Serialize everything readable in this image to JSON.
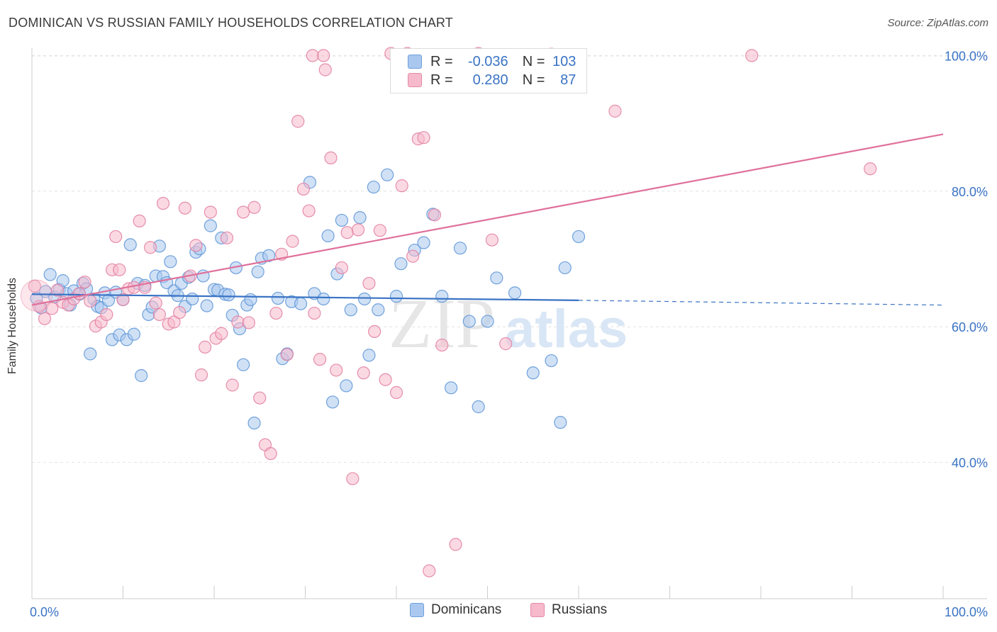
{
  "header": {
    "title": "DOMINICAN VS RUSSIAN FAMILY HOUSEHOLDS CORRELATION CHART",
    "source": "Source: ZipAtlas.com"
  },
  "watermark": {
    "zip": "ZIP",
    "atlas": "atlas"
  },
  "legend": {
    "r_label": "R =",
    "n_label": "N =",
    "rows": [
      {
        "r": "-0.036",
        "n": "103",
        "fill": "#aac8ef",
        "stroke": "#6f9fdb"
      },
      {
        "r": "0.280",
        "n": "87",
        "fill": "#f7b9cc",
        "stroke": "#e48aa8"
      }
    ]
  },
  "bottom_legend": [
    {
      "label": "Dominicans",
      "fill": "#aac8ef",
      "stroke": "#6f9fdb"
    },
    {
      "label": "Russians",
      "fill": "#f7b9cc",
      "stroke": "#e48aa8"
    }
  ],
  "chart_data": {
    "type": "scatter",
    "xlabel": "",
    "ylabel": "Family Households",
    "xlim": [
      0,
      100
    ],
    "ylim": [
      20,
      103
    ],
    "x_tick_labels": [
      {
        "value": 0,
        "label": "0.0%"
      },
      {
        "value": 100,
        "label": "100.0%"
      }
    ],
    "y_tick_labels": [
      {
        "value": 40,
        "label": "40.0%"
      },
      {
        "value": 60,
        "label": "60.0%"
      },
      {
        "value": 80,
        "label": "80.0%"
      },
      {
        "value": 100,
        "label": "100.0%"
      }
    ],
    "grid": true,
    "series": [
      {
        "name": "Dominicans",
        "color": "#5b93d6",
        "fill": "#aac8ef",
        "trend": {
          "x0": 0,
          "y0": 64.8,
          "x1": 60,
          "y1": 63.9,
          "dash_to": 100,
          "dash_y": 63.2,
          "color": "#3a73c4"
        },
        "points": [
          [
            0.5,
            64.2
          ],
          [
            1,
            62.8
          ],
          [
            1.5,
            65.2
          ],
          [
            2,
            67.7
          ],
          [
            2.5,
            64.4
          ],
          [
            3,
            65.5
          ],
          [
            3.4,
            66.8
          ],
          [
            3.8,
            64.9
          ],
          [
            4.2,
            63.2
          ],
          [
            4.6,
            65.3
          ],
          [
            5.2,
            64.8
          ],
          [
            5.6,
            66.4
          ],
          [
            6,
            65.6
          ],
          [
            6.4,
            56.0
          ],
          [
            6.8,
            64.1
          ],
          [
            7.2,
            63.0
          ],
          [
            7.6,
            62.8
          ],
          [
            8,
            65.0
          ],
          [
            8.4,
            63.9
          ],
          [
            8.8,
            58.1
          ],
          [
            9.2,
            65.1
          ],
          [
            9.6,
            58.8
          ],
          [
            10,
            64.0
          ],
          [
            10.4,
            58.1
          ],
          [
            10.8,
            72.1
          ],
          [
            11.2,
            58.9
          ],
          [
            11.6,
            66.4
          ],
          [
            12,
            52.8
          ],
          [
            12.4,
            66.1
          ],
          [
            12.8,
            61.8
          ],
          [
            13.2,
            62.9
          ],
          [
            13.6,
            67.5
          ],
          [
            14,
            71.9
          ],
          [
            14.4,
            67.4
          ],
          [
            14.8,
            66.5
          ],
          [
            15.2,
            69.6
          ],
          [
            15.6,
            65.3
          ],
          [
            16,
            64.6
          ],
          [
            16.4,
            66.4
          ],
          [
            16.8,
            63.0
          ],
          [
            17.2,
            67.3
          ],
          [
            17.6,
            64.1
          ],
          [
            18,
            71.0
          ],
          [
            18.4,
            71.5
          ],
          [
            18.8,
            67.5
          ],
          [
            19.2,
            63.1
          ],
          [
            19.6,
            74.9
          ],
          [
            20,
            65.5
          ],
          [
            20.4,
            65.4
          ],
          [
            20.8,
            73.1
          ],
          [
            21.2,
            64.8
          ],
          [
            21.6,
            64.7
          ],
          [
            22,
            61.7
          ],
          [
            22.4,
            68.7
          ],
          [
            22.8,
            59.7
          ],
          [
            23.2,
            54.4
          ],
          [
            23.6,
            63.2
          ],
          [
            24,
            64.0
          ],
          [
            24.4,
            45.8
          ],
          [
            24.8,
            68.1
          ],
          [
            25.2,
            70.1
          ],
          [
            26,
            70.5
          ],
          [
            27,
            64.2
          ],
          [
            27.5,
            55.3
          ],
          [
            28,
            56.0
          ],
          [
            28.5,
            63.7
          ],
          [
            29.5,
            63.4
          ],
          [
            30.5,
            81.3
          ],
          [
            31,
            64.9
          ],
          [
            32,
            64.1
          ],
          [
            32.5,
            73.4
          ],
          [
            33,
            48.9
          ],
          [
            33.5,
            67.8
          ],
          [
            34,
            75.7
          ],
          [
            34.5,
            51.3
          ],
          [
            35,
            62.5
          ],
          [
            36,
            76.1
          ],
          [
            36.5,
            64.1
          ],
          [
            37,
            55.8
          ],
          [
            37.5,
            80.6
          ],
          [
            38,
            62.5
          ],
          [
            39,
            82.4
          ],
          [
            40,
            64.5
          ],
          [
            40.5,
            69.3
          ],
          [
            42,
            71.3
          ],
          [
            43,
            72.4
          ],
          [
            44,
            76.6
          ],
          [
            45,
            64.5
          ],
          [
            46,
            51.0
          ],
          [
            47,
            71.6
          ],
          [
            48,
            60.8
          ],
          [
            49,
            48.2
          ],
          [
            50,
            60.8
          ],
          [
            51,
            67.2
          ],
          [
            53,
            65.0
          ],
          [
            55,
            53.2
          ],
          [
            57,
            55.0
          ],
          [
            58,
            45.9
          ],
          [
            58.5,
            68.7
          ],
          [
            60,
            73.3
          ]
        ]
      },
      {
        "name": "Russians",
        "color": "#e07ca0",
        "fill": "#f7b9cc",
        "trend": {
          "x0": 0,
          "y0": 63.2,
          "x1": 100,
          "y1": 88.4,
          "color": "#e0709a"
        },
        "points": [
          [
            0.3,
            66.0
          ],
          [
            0.8,
            63.0
          ],
          [
            1.4,
            61.2
          ],
          [
            2.2,
            62.7
          ],
          [
            2.8,
            65.4
          ],
          [
            3.4,
            63.6
          ],
          [
            4,
            63.2
          ],
          [
            4.6,
            64.1
          ],
          [
            5.2,
            64.9
          ],
          [
            5.8,
            66.6
          ],
          [
            6.4,
            63.8
          ],
          [
            7,
            60.1
          ],
          [
            7.6,
            60.7
          ],
          [
            8.2,
            61.8
          ],
          [
            8.8,
            68.4
          ],
          [
            9.2,
            73.3
          ],
          [
            9.6,
            68.4
          ],
          [
            10,
            64.0
          ],
          [
            10.6,
            65.6
          ],
          [
            11.2,
            65.8
          ],
          [
            11.8,
            75.6
          ],
          [
            12.4,
            65.8
          ],
          [
            13,
            71.7
          ],
          [
            13.6,
            63.5
          ],
          [
            14,
            61.8
          ],
          [
            14.4,
            78.2
          ],
          [
            15,
            60.4
          ],
          [
            15.6,
            60.7
          ],
          [
            16.2,
            62.1
          ],
          [
            16.8,
            77.5
          ],
          [
            17.4,
            67.5
          ],
          [
            18,
            72.0
          ],
          [
            18.6,
            52.9
          ],
          [
            19,
            57.0
          ],
          [
            19.6,
            76.9
          ],
          [
            20.2,
            58.3
          ],
          [
            20.8,
            59.0
          ],
          [
            21.4,
            73.1
          ],
          [
            22,
            51.4
          ],
          [
            22.6,
            60.7
          ],
          [
            23.2,
            76.9
          ],
          [
            23.8,
            60.6
          ],
          [
            24.4,
            77.6
          ],
          [
            25,
            49.5
          ],
          [
            25.6,
            42.6
          ],
          [
            26.2,
            41.3
          ],
          [
            26.8,
            62.0
          ],
          [
            27.4,
            70.7
          ],
          [
            28,
            55.9
          ],
          [
            28.6,
            72.6
          ],
          [
            29.2,
            90.3
          ],
          [
            29.8,
            80.3
          ],
          [
            30.4,
            77.1
          ],
          [
            31,
            62.0
          ],
          [
            31.6,
            55.2
          ],
          [
            32.2,
            97.9
          ],
          [
            32.8,
            84.9
          ],
          [
            33.4,
            53.6
          ],
          [
            34,
            68.7
          ],
          [
            34.6,
            73.9
          ],
          [
            35.2,
            37.6
          ],
          [
            35.8,
            74.3
          ],
          [
            36.4,
            53.2
          ],
          [
            37,
            66.4
          ],
          [
            37.6,
            59.3
          ],
          [
            38.2,
            74.2
          ],
          [
            38.8,
            52.2
          ],
          [
            39.4,
            100.3
          ],
          [
            40,
            50.3
          ],
          [
            40.6,
            80.8
          ],
          [
            41.2,
            100.3
          ],
          [
            41.8,
            70.4
          ],
          [
            42.4,
            87.7
          ],
          [
            43,
            87.9
          ],
          [
            43.6,
            24.0
          ],
          [
            44.2,
            76.5
          ],
          [
            45,
            57.3
          ],
          [
            46.5,
            27.9
          ],
          [
            49,
            100.3
          ],
          [
            50.5,
            72.8
          ],
          [
            52,
            57.5
          ],
          [
            57,
            100.2
          ],
          [
            64,
            91.8
          ],
          [
            79,
            100.0
          ],
          [
            92,
            83.3
          ],
          [
            30.8,
            100.0
          ],
          [
            32,
            100.0
          ]
        ]
      }
    ]
  }
}
